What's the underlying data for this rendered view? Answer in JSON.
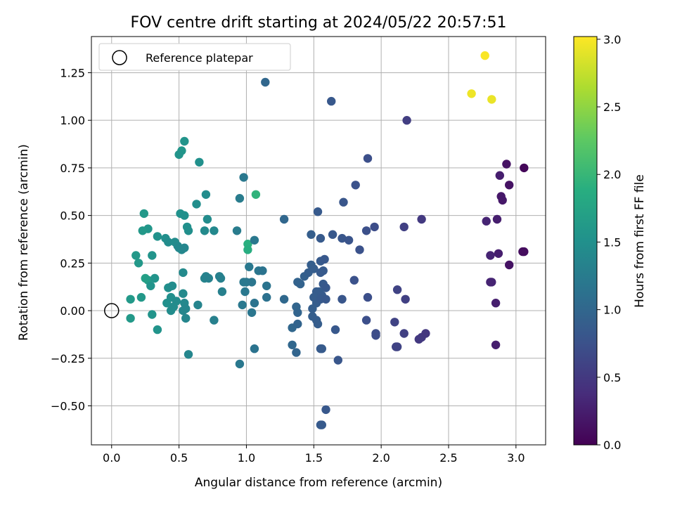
{
  "chart_data": {
    "type": "scatter",
    "title": "FOV centre drift starting at 2024/05/22 20:57:51",
    "xlabel": "Angular distance from reference (arcmin)",
    "ylabel": "Rotation from reference (arcmin)",
    "xlim": [
      -0.15,
      3.22
    ],
    "ylim": [
      -0.705,
      1.44
    ],
    "xticks": [
      0.0,
      0.5,
      1.0,
      1.5,
      2.0,
      2.5,
      3.0
    ],
    "xtick_labels": [
      "0.0",
      "0.5",
      "1.0",
      "1.5",
      "2.0",
      "2.5",
      "3.0"
    ],
    "yticks": [
      -0.5,
      -0.25,
      0.0,
      0.25,
      0.5,
      0.75,
      1.0,
      1.25
    ],
    "ytick_labels": [
      "−0.50",
      "−0.25",
      "0.00",
      "0.25",
      "0.50",
      "0.75",
      "1.00",
      "1.25"
    ],
    "grid": true,
    "legend": {
      "placement": "top-left",
      "entries": [
        "Reference platepar"
      ]
    },
    "reference_point": {
      "x": 0.0,
      "y": 0.0
    },
    "colorbar": {
      "label": "Hours from first FF file",
      "colormap": "viridis",
      "range": [
        0.0,
        3.02
      ],
      "ticks": [
        0.0,
        0.5,
        1.0,
        1.5,
        2.0,
        2.5,
        3.0
      ],
      "tick_labels": [
        "0.0",
        "0.5",
        "1.0",
        "1.5",
        "2.0",
        "2.5",
        "3.0"
      ]
    },
    "points": [
      [
        2.77,
        1.34,
        3.0
      ],
      [
        2.67,
        1.14,
        2.95
      ],
      [
        2.82,
        1.11,
        2.93
      ],
      [
        1.07,
        0.61,
        1.95
      ],
      [
        1.01,
        0.35,
        1.9
      ],
      [
        1.01,
        0.32,
        1.88
      ],
      [
        0.54,
        0.89,
        1.55
      ],
      [
        0.52,
        0.84,
        1.57
      ],
      [
        0.5,
        0.82,
        1.55
      ],
      [
        0.65,
        0.78,
        1.5
      ],
      [
        0.7,
        0.61,
        1.45
      ],
      [
        0.63,
        0.56,
        1.47
      ],
      [
        0.24,
        0.51,
        1.6
      ],
      [
        0.51,
        0.51,
        1.52
      ],
      [
        0.54,
        0.5,
        1.5
      ],
      [
        0.71,
        0.48,
        1.45
      ],
      [
        0.27,
        0.43,
        1.58
      ],
      [
        0.23,
        0.42,
        1.6
      ],
      [
        0.56,
        0.44,
        1.5
      ],
      [
        0.57,
        0.42,
        1.48
      ],
      [
        0.69,
        0.42,
        1.42
      ],
      [
        0.76,
        0.42,
        1.4
      ],
      [
        0.34,
        0.39,
        1.52
      ],
      [
        0.4,
        0.38,
        1.48
      ],
      [
        0.42,
        0.36,
        1.45
      ],
      [
        0.47,
        0.36,
        1.45
      ],
      [
        0.49,
        0.34,
        1.42
      ],
      [
        0.5,
        0.33,
        1.4
      ],
      [
        0.52,
        0.32,
        1.4
      ],
      [
        0.54,
        0.33,
        1.38
      ],
      [
        0.18,
        0.29,
        1.6
      ],
      [
        0.3,
        0.29,
        1.55
      ],
      [
        0.2,
        0.25,
        1.6
      ],
      [
        0.25,
        0.17,
        1.7
      ],
      [
        0.27,
        0.16,
        1.68
      ],
      [
        0.32,
        0.17,
        1.55
      ],
      [
        0.29,
        0.13,
        1.55
      ],
      [
        0.42,
        0.12,
        1.48
      ],
      [
        0.45,
        0.13,
        1.45
      ],
      [
        0.53,
        0.2,
        1.42
      ],
      [
        0.69,
        0.17,
        1.35
      ],
      [
        0.7,
        0.18,
        1.33
      ],
      [
        0.72,
        0.17,
        1.32
      ],
      [
        0.8,
        0.18,
        1.3
      ],
      [
        0.81,
        0.17,
        1.3
      ],
      [
        0.82,
        0.1,
        1.3
      ],
      [
        0.22,
        0.07,
        1.6
      ],
      [
        0.14,
        0.06,
        1.62
      ],
      [
        0.41,
        0.04,
        1.5
      ],
      [
        0.44,
        0.07,
        1.48
      ],
      [
        0.48,
        0.05,
        1.45
      ],
      [
        0.53,
        0.09,
        1.42
      ],
      [
        0.54,
        0.04,
        1.4
      ],
      [
        0.55,
        0.01,
        1.38
      ],
      [
        0.53,
        0.0,
        1.38
      ],
      [
        0.44,
        0.0,
        1.45
      ],
      [
        0.46,
        0.02,
        1.45
      ],
      [
        0.64,
        0.03,
        1.35
      ],
      [
        0.3,
        -0.02,
        1.55
      ],
      [
        0.14,
        -0.04,
        1.62
      ],
      [
        0.34,
        -0.1,
        1.55
      ],
      [
        0.55,
        -0.04,
        1.38
      ],
      [
        0.76,
        -0.05,
        1.3
      ],
      [
        0.57,
        -0.23,
        1.38
      ],
      [
        0.95,
        0.59,
        1.25
      ],
      [
        0.98,
        0.7,
        1.2
      ],
      [
        0.93,
        0.42,
        1.25
      ],
      [
        1.06,
        0.37,
        1.2
      ],
      [
        1.02,
        0.23,
        1.2
      ],
      [
        1.09,
        0.21,
        1.18
      ],
      [
        1.12,
        0.21,
        1.15
      ],
      [
        0.98,
        0.15,
        1.2
      ],
      [
        1.0,
        0.15,
        1.2
      ],
      [
        1.04,
        0.15,
        1.18
      ],
      [
        0.99,
        0.1,
        1.2
      ],
      [
        1.15,
        0.13,
        1.15
      ],
      [
        0.97,
        0.03,
        1.2
      ],
      [
        1.06,
        0.04,
        1.15
      ],
      [
        1.15,
        0.07,
        1.12
      ],
      [
        1.04,
        -0.01,
        1.18
      ],
      [
        1.06,
        -0.2,
        1.15
      ],
      [
        0.95,
        -0.28,
        1.2
      ],
      [
        1.14,
        1.2,
        1.0
      ],
      [
        1.28,
        0.48,
        1.0
      ],
      [
        1.28,
        0.06,
        1.02
      ],
      [
        1.34,
        -0.09,
        1.0
      ],
      [
        1.37,
        0.02,
        0.98
      ],
      [
        1.38,
        -0.01,
        0.97
      ],
      [
        1.38,
        -0.07,
        0.97
      ],
      [
        1.34,
        -0.18,
        1.0
      ],
      [
        1.37,
        -0.22,
        0.98
      ],
      [
        1.38,
        0.15,
        0.95
      ],
      [
        1.4,
        0.14,
        0.95
      ],
      [
        1.43,
        0.18,
        0.92
      ],
      [
        1.46,
        0.2,
        0.9
      ],
      [
        1.48,
        0.4,
        0.9
      ],
      [
        1.48,
        0.24,
        0.9
      ],
      [
        1.5,
        0.22,
        0.88
      ],
      [
        1.53,
        0.52,
        0.85
      ],
      [
        1.55,
        0.38,
        0.85
      ],
      [
        1.55,
        0.26,
        0.85
      ],
      [
        1.58,
        0.27,
        0.83
      ],
      [
        1.57,
        0.21,
        0.85
      ],
      [
        1.55,
        0.2,
        0.85
      ],
      [
        1.57,
        0.14,
        0.85
      ],
      [
        1.59,
        0.12,
        0.83
      ],
      [
        1.52,
        0.1,
        0.87
      ],
      [
        1.54,
        0.1,
        0.87
      ],
      [
        1.56,
        0.08,
        0.86
      ],
      [
        1.5,
        0.07,
        0.88
      ],
      [
        1.52,
        0.04,
        0.88
      ],
      [
        1.49,
        0.01,
        0.9
      ],
      [
        1.49,
        -0.03,
        0.9
      ],
      [
        1.52,
        -0.05,
        0.88
      ],
      [
        1.55,
        0.06,
        0.85
      ],
      [
        1.59,
        0.06,
        0.83
      ],
      [
        1.64,
        0.4,
        0.82
      ],
      [
        1.71,
        0.38,
        0.8
      ],
      [
        1.76,
        0.37,
        0.78
      ],
      [
        1.72,
        0.57,
        0.8
      ],
      [
        1.63,
        1.1,
        0.83
      ],
      [
        1.81,
        0.66,
        0.75
      ],
      [
        1.84,
        0.32,
        0.75
      ],
      [
        1.8,
        0.16,
        0.75
      ],
      [
        1.71,
        0.06,
        0.8
      ],
      [
        1.53,
        -0.07,
        0.88
      ],
      [
        1.55,
        -0.2,
        0.86
      ],
      [
        1.56,
        -0.2,
        0.86
      ],
      [
        1.66,
        -0.1,
        0.82
      ],
      [
        1.68,
        -0.26,
        0.8
      ],
      [
        1.59,
        -0.52,
        0.83
      ],
      [
        1.55,
        -0.6,
        0.85
      ],
      [
        1.56,
        -0.6,
        0.85
      ],
      [
        1.89,
        0.42,
        0.73
      ],
      [
        1.95,
        0.44,
        0.7
      ],
      [
        1.9,
        0.8,
        0.72
      ],
      [
        1.89,
        -0.05,
        0.72
      ],
      [
        1.9,
        0.07,
        0.72
      ],
      [
        1.96,
        -0.12,
        0.7
      ],
      [
        1.96,
        -0.13,
        0.7
      ],
      [
        2.19,
        1.0,
        0.55
      ],
      [
        2.17,
        0.44,
        0.57
      ],
      [
        2.3,
        0.48,
        0.5
      ],
      [
        2.12,
        0.11,
        0.6
      ],
      [
        2.18,
        0.06,
        0.57
      ],
      [
        2.1,
        -0.06,
        0.6
      ],
      [
        2.17,
        -0.12,
        0.57
      ],
      [
        2.11,
        -0.19,
        0.6
      ],
      [
        2.12,
        -0.19,
        0.6
      ],
      [
        2.28,
        -0.15,
        0.5
      ],
      [
        2.3,
        -0.14,
        0.5
      ],
      [
        2.33,
        -0.12,
        0.48
      ],
      [
        2.88,
        0.71,
        0.25
      ],
      [
        2.89,
        0.6,
        0.2
      ],
      [
        2.9,
        0.58,
        0.2
      ],
      [
        2.93,
        0.77,
        0.15
      ],
      [
        2.95,
        0.66,
        0.15
      ],
      [
        2.78,
        0.47,
        0.3
      ],
      [
        2.86,
        0.48,
        0.25
      ],
      [
        2.81,
        0.29,
        0.3
      ],
      [
        2.87,
        0.3,
        0.25
      ],
      [
        2.81,
        0.15,
        0.3
      ],
      [
        2.82,
        0.15,
        0.3
      ],
      [
        2.95,
        0.24,
        0.15
      ],
      [
        2.85,
        0.04,
        0.25
      ],
      [
        2.85,
        -0.18,
        0.25
      ],
      [
        3.06,
        0.75,
        0.05
      ],
      [
        3.06,
        0.31,
        0.1
      ],
      [
        3.05,
        0.31,
        0.1
      ]
    ]
  }
}
